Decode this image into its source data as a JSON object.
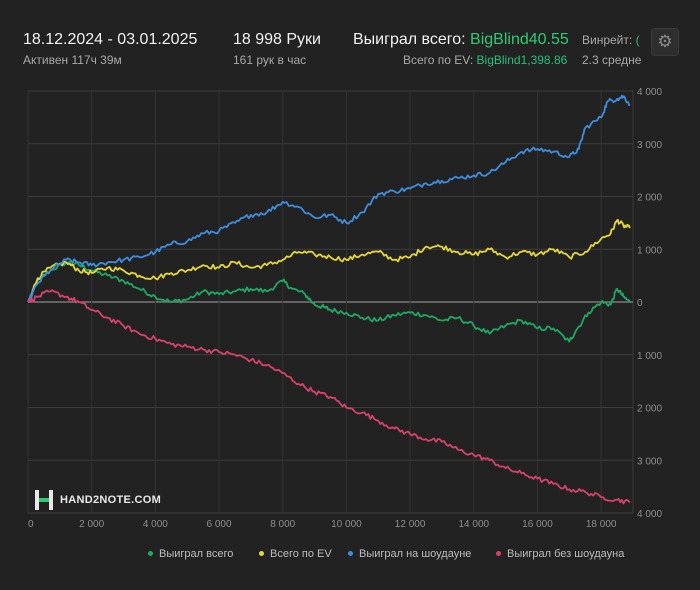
{
  "header": {
    "date_range": "18.12.2024 - 03.01.2025",
    "active_time": "Активен 117ч 39м",
    "hands_total": "18 998 Руки",
    "hands_per_hour": "161 рук в час",
    "won_total_label": "Выиграл всего:",
    "won_total_value": "BigBlind40.55",
    "ev_total_label": "Всего по EV:",
    "ev_total_value": "BigBlind1,398.86",
    "winrate_label": "Винрейт:",
    "winrate_value": "(",
    "winrate_sub": "2.3 средне",
    "settings_icon": "gear-icon"
  },
  "logo": {
    "text": "HAND2NOTE.COM",
    "icon": "h2n-logo-icon"
  },
  "chart_data": {
    "type": "line",
    "title": "",
    "xlabel": "",
    "ylabel": "",
    "xlim": [
      0,
      19000
    ],
    "ylim": [
      -4000,
      4000
    ],
    "x_ticks": [
      0,
      2000,
      4000,
      6000,
      8000,
      10000,
      12000,
      14000,
      16000,
      18000
    ],
    "x_tick_labels": [
      "0",
      "2 000",
      "4 000",
      "6 000",
      "8 000",
      "10 000",
      "12 000",
      "14 000",
      "16 000",
      "18 000"
    ],
    "y_ticks": [
      4000,
      3000,
      2000,
      1000,
      0,
      -1000,
      -2000,
      -3000,
      -4000
    ],
    "y_tick_labels": [
      "4 000",
      "3 000",
      "2 000",
      "1 000",
      "0",
      "1 000",
      "2 000",
      "3 000",
      "4 000"
    ],
    "grid": true,
    "legend_position": "bottom",
    "series": [
      {
        "name": "Выиграл всего",
        "color": "#1fa864",
        "x": [
          0,
          300,
          700,
          1200,
          1600,
          2000,
          2500,
          3000,
          3500,
          4000,
          4500,
          5000,
          5500,
          6000,
          6500,
          7000,
          7500,
          8000,
          8300,
          8700,
          9000,
          9300,
          9500,
          10000,
          10500,
          11000,
          11500,
          12000,
          12500,
          13000,
          13500,
          14000,
          14500,
          15000,
          15500,
          16000,
          16500,
          17000,
          17200,
          17600,
          18000,
          18300,
          18500,
          18700,
          18900
        ],
        "y": [
          0,
          400,
          600,
          750,
          700,
          600,
          500,
          400,
          250,
          100,
          0,
          50,
          200,
          150,
          200,
          250,
          200,
          400,
          250,
          150,
          -50,
          -100,
          -150,
          -200,
          -300,
          -350,
          -250,
          -200,
          -250,
          -350,
          -300,
          -450,
          -600,
          -450,
          -350,
          -500,
          -500,
          -750,
          -550,
          -200,
          0,
          -50,
          250,
          100,
          0
        ]
      },
      {
        "name": "Всего по EV",
        "color": "#e6d63a",
        "x": [
          0,
          300,
          700,
          1200,
          1600,
          2000,
          2500,
          3000,
          3500,
          4000,
          4500,
          5000,
          5500,
          6000,
          6500,
          7000,
          7500,
          8000,
          8500,
          9000,
          9500,
          10000,
          10500,
          11000,
          11500,
          12000,
          12500,
          13000,
          13500,
          14000,
          14500,
          15000,
          15500,
          16000,
          16500,
          17000,
          17500,
          18000,
          18300,
          18500,
          18700,
          18900
        ],
        "y": [
          0,
          450,
          650,
          750,
          600,
          550,
          650,
          600,
          500,
          450,
          550,
          600,
          700,
          650,
          750,
          650,
          700,
          800,
          950,
          900,
          850,
          800,
          900,
          950,
          800,
          850,
          1050,
          1050,
          950,
          900,
          1000,
          850,
          950,
          900,
          1000,
          850,
          950,
          1200,
          1300,
          1550,
          1450,
          1400
        ]
      },
      {
        "name": "Выиграл на шоудауне",
        "color": "#3d8ee0",
        "x": [
          0,
          300,
          700,
          1200,
          1600,
          2000,
          2500,
          3000,
          3500,
          4000,
          4500,
          5000,
          5500,
          6000,
          6500,
          7000,
          7500,
          8000,
          8500,
          9000,
          9500,
          10000,
          10500,
          11000,
          11500,
          12000,
          12500,
          13000,
          13500,
          14000,
          14500,
          15000,
          15500,
          16000,
          16500,
          17000,
          17300,
          17500,
          18000,
          18200,
          18500,
          18700,
          18900
        ],
        "y": [
          0,
          350,
          600,
          800,
          750,
          700,
          750,
          800,
          850,
          950,
          1100,
          1150,
          1300,
          1350,
          1500,
          1650,
          1700,
          1900,
          1800,
          1600,
          1650,
          1500,
          1700,
          2050,
          2100,
          2150,
          2250,
          2300,
          2350,
          2400,
          2450,
          2650,
          2850,
          2900,
          2850,
          2750,
          2900,
          3300,
          3500,
          3800,
          3850,
          3900,
          3750
        ]
      },
      {
        "name": "Выиграл без шоудауна",
        "color": "#d8416b",
        "x": [
          0,
          300,
          700,
          1200,
          1600,
          2000,
          2500,
          3000,
          3500,
          4000,
          4500,
          5000,
          5500,
          6000,
          6500,
          7000,
          7500,
          8000,
          8500,
          9000,
          9500,
          10000,
          10500,
          11000,
          11500,
          12000,
          12500,
          13000,
          13500,
          14000,
          14500,
          15000,
          15500,
          16000,
          16500,
          17000,
          17500,
          18000,
          18500,
          18900
        ],
        "y": [
          0,
          100,
          200,
          100,
          0,
          -150,
          -300,
          -450,
          -600,
          -700,
          -800,
          -850,
          -900,
          -950,
          -1000,
          -1100,
          -1200,
          -1350,
          -1550,
          -1700,
          -1800,
          -2000,
          -2100,
          -2250,
          -2400,
          -2500,
          -2600,
          -2650,
          -2800,
          -2900,
          -3000,
          -3150,
          -3250,
          -3350,
          -3450,
          -3550,
          -3600,
          -3700,
          -3750,
          -3800
        ]
      }
    ]
  }
}
